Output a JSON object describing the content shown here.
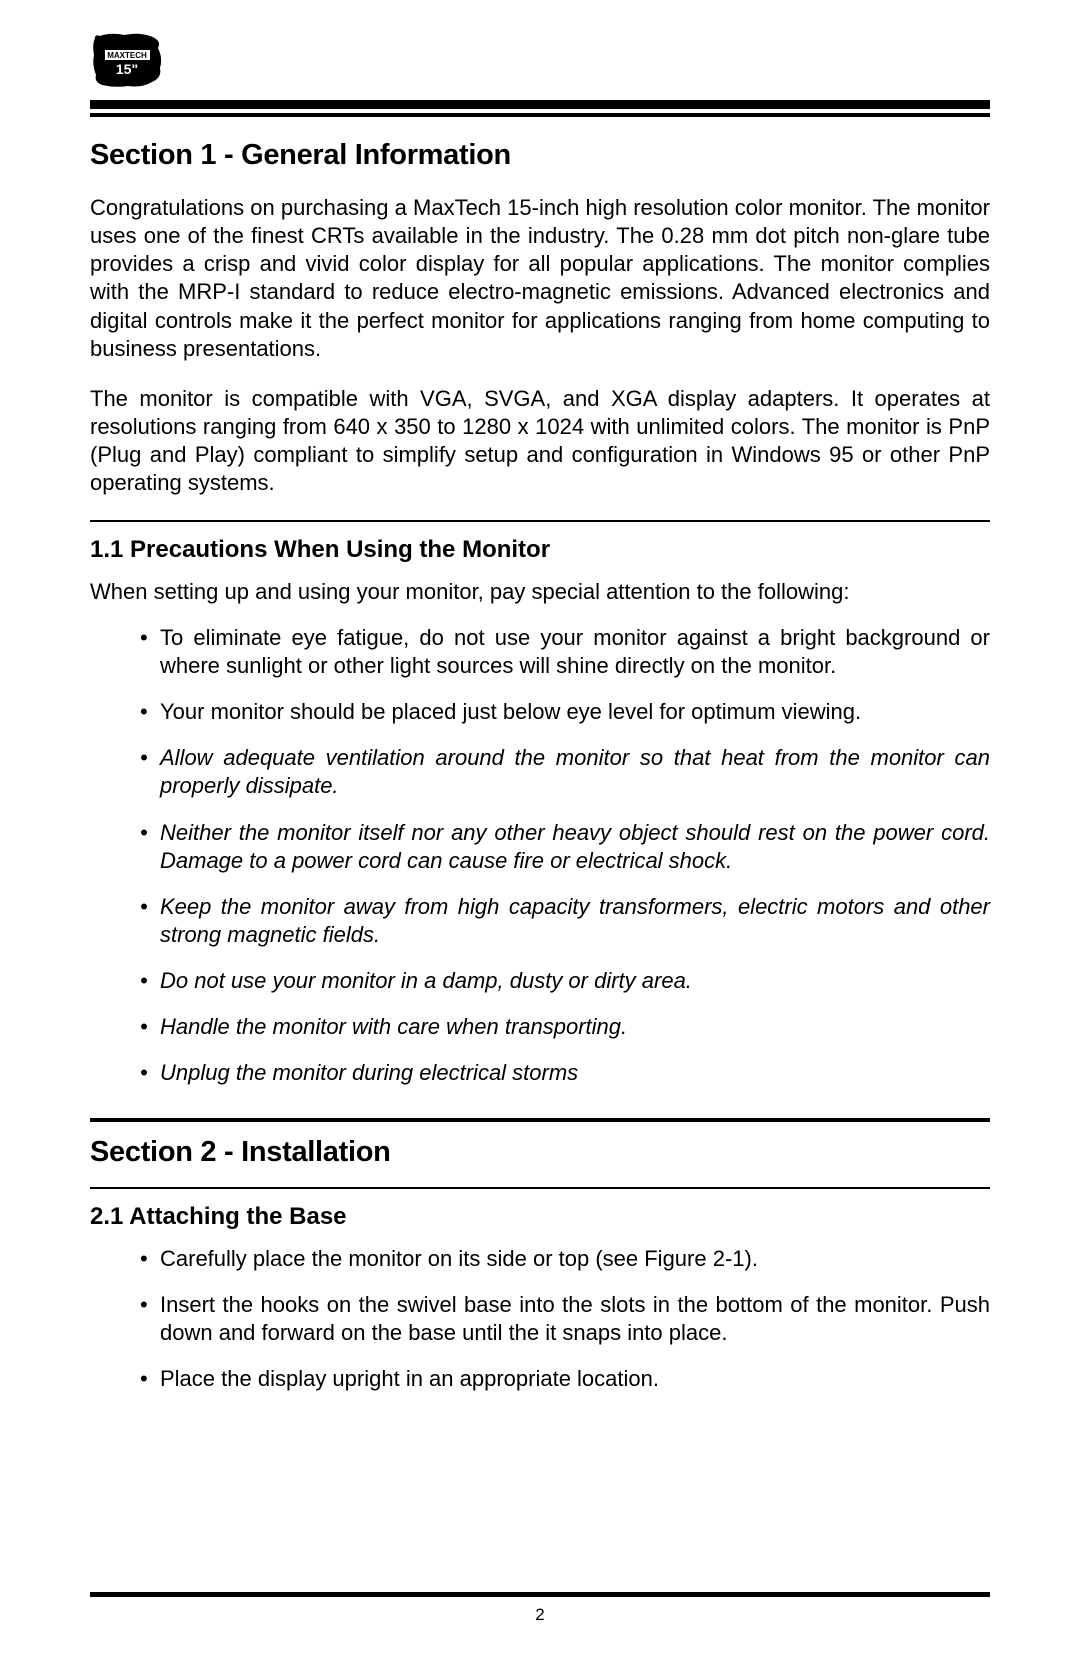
{
  "logo": {
    "label": "MaxTech 15\""
  },
  "section1": {
    "title": "Section 1 - General Information",
    "para1": "Congratulations on purchasing a MaxTech 15-inch high resolution color monitor. The monitor uses one of the finest CRTs available in the industry. The 0.28 mm dot pitch non-glare tube provides a crisp and vivid color display for all popular applications. The monitor complies with the MRP-I standard to reduce electro-magnetic emissions. Advanced electronics and digital controls make it the perfect monitor for applications ranging from home computing to business presentations.",
    "para2": "The monitor is compatible with VGA, SVGA, and XGA display adapters. It operates at resolutions ranging from  640 x 350 to 1280 x 1024 with unlimited colors. The monitor is PnP (Plug and Play) compliant to simplify setup and configuration in Windows 95 or other PnP operating systems.",
    "sub1": {
      "title": "1.1 Precautions When Using the Monitor",
      "intro": "When setting up and using your monitor, pay special attention to the following:",
      "items": [
        {
          "text": "To eliminate eye fatigue, do not use your monitor against a bright background or where sunlight or other light sources will shine directly on the monitor.",
          "italic": false
        },
        {
          "text": "Your monitor should be placed just below eye level for optimum viewing.",
          "italic": false
        },
        {
          "text": "Allow adequate ventilation around the monitor so that heat from the monitor can properly dissipate.",
          "italic": true
        },
        {
          "text": "Neither the monitor itself nor any other heavy object should rest on the power cord. Damage to a power cord can cause fire or electrical shock.",
          "italic": true
        },
        {
          "text": "Keep the monitor away from high capacity transformers, electric motors and other strong magnetic fields.",
          "italic": true
        },
        {
          "text": "Do not use your monitor in a damp, dusty or dirty area.",
          "italic": true
        },
        {
          "text": "Handle the monitor with care when transporting.",
          "italic": true
        },
        {
          "text": "Unplug the monitor during electrical storms",
          "italic": true
        }
      ]
    }
  },
  "section2": {
    "title": "Section 2 - Installation",
    "sub1": {
      "title": "2.1 Attaching the Base",
      "items": [
        {
          "text": "Carefully place the monitor on its side or top (see Figure 2-1).",
          "italic": false
        },
        {
          "text": "Insert the hooks on the swivel base into the slots in the bottom of the monitor. Push down and forward on the base until the it snaps into place.",
          "italic": false
        },
        {
          "text": "Place the display upright in an appropriate location.",
          "italic": false
        }
      ]
    }
  },
  "pageNumber": "2",
  "colors": {
    "text": "#000000",
    "background": "#ffffff",
    "rule": "#000000"
  }
}
